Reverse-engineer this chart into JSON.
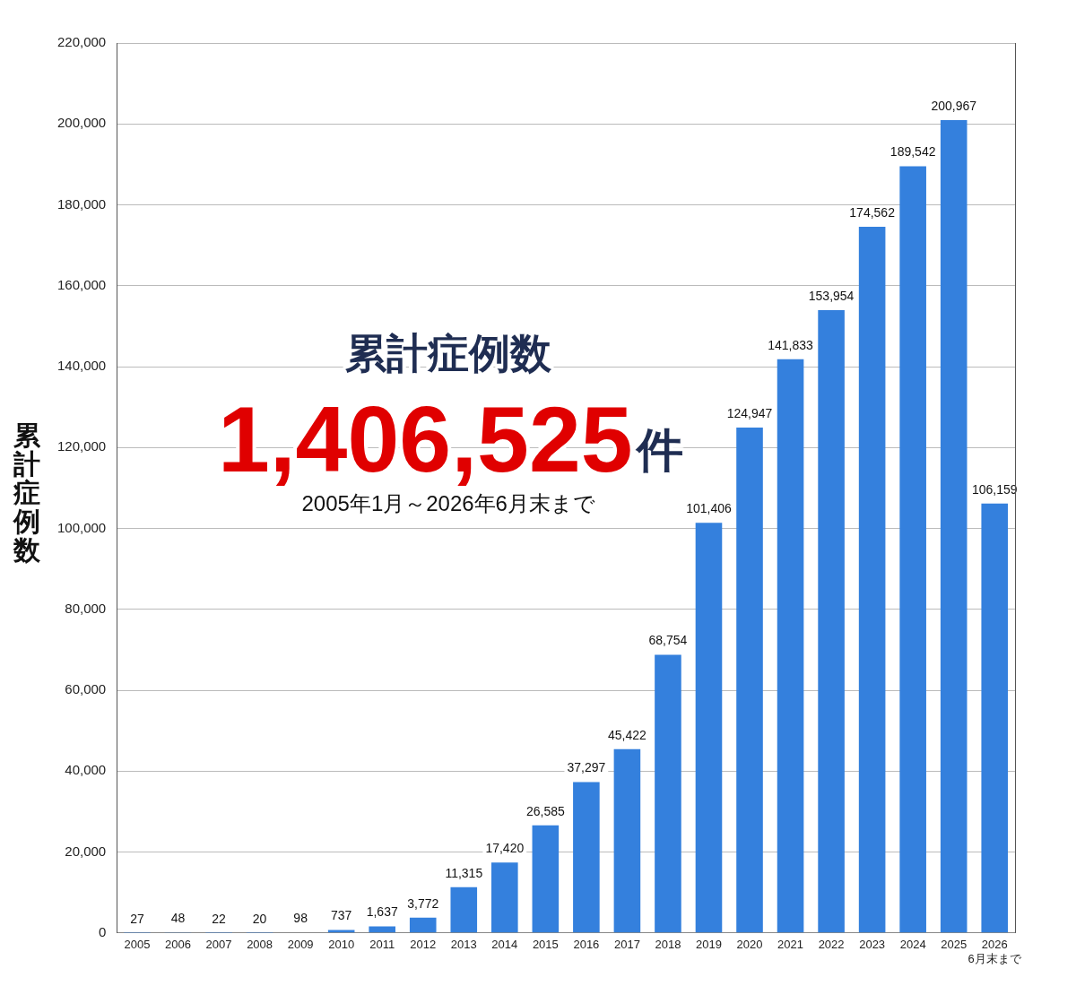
{
  "chart_data": {
    "type": "bar",
    "title": "累計症例数",
    "ylabel": "累計症例数",
    "annotations": [
      "1,406,525件",
      "2005年1月～2026年6月末まで"
    ],
    "categories": [
      "2005",
      "2006",
      "2007",
      "2008",
      "2009",
      "2010",
      "2011",
      "2012",
      "2013",
      "2014",
      "2015",
      "2016",
      "2017",
      "2018",
      "2019",
      "2020",
      "2021",
      "2022",
      "2023",
      "2024",
      "2025",
      "2026\n6月末まで"
    ],
    "values": [
      27,
      48,
      22,
      20,
      98,
      737,
      1637,
      3772,
      11315,
      17420,
      26585,
      37297,
      45422,
      68754,
      101406,
      124947,
      141833,
      153954,
      174562,
      189542,
      200967,
      106159
    ],
    "value_labels": [
      "27",
      "48",
      "22",
      "20",
      "98",
      "737",
      "1,637",
      "3,772",
      "11,315",
      "17,420",
      "26,585",
      "37,297",
      "45,422",
      "68,754",
      "101,406",
      "124,947",
      "141,833",
      "153,954",
      "174,562",
      "189,542",
      "200,967",
      "106,159"
    ],
    "color": "#3480dd",
    "ylim": [
      0,
      220000
    ],
    "yticks": [
      0,
      {
        "value": 20000,
        "label": "20,000"
      },
      {
        "value": 40000,
        "label": "40,000"
      },
      {
        "value": 60000,
        "label": "60,000"
      },
      {
        "value": 80000,
        "label": "80,000"
      },
      {
        "value": 100000,
        "label": "100,000"
      },
      {
        "value": 120000,
        "label": "120,000"
      },
      {
        "value": 140000,
        "label": "140,000"
      },
      {
        "value": 160000,
        "label": "160,000"
      },
      {
        "value": 180000,
        "label": "180,000"
      },
      {
        "value": 200000,
        "label": "200,000"
      },
      {
        "value": 220000,
        "label": "220,000"
      }
    ],
    "grid": "y"
  }
}
